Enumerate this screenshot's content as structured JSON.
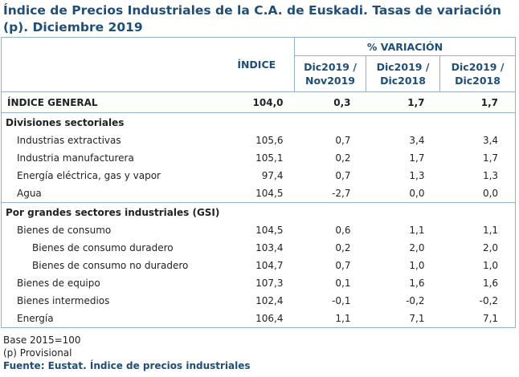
{
  "title": "Índice de Precios Industriales de la C.A. de Euskadi. Tasas de variación (p). Diciembre 2019",
  "headers": {
    "indice": "ÍNDICE",
    "variacion": "% VARIACIÓN",
    "col1": "Dic2019 / Nov2019",
    "col2": "Dic2019 / Dic2018",
    "col3": "Dic2019 / Dic2018"
  },
  "general": {
    "label": "ÍNDICE GENERAL",
    "indice": "104,0",
    "v1": "0,3",
    "v2": "1,7",
    "v3": "1,7"
  },
  "sections": [
    {
      "title": "Divisiones sectoriales",
      "rows": [
        {
          "label": "Industrias extractivas",
          "indice": "105,6",
          "v1": "0,7",
          "v2": "3,4",
          "v3": "3,4"
        },
        {
          "label": "Industria manufacturera",
          "indice": "105,1",
          "v1": "0,2",
          "v2": "1,7",
          "v3": "1,7"
        },
        {
          "label": "Energía eléctrica, gas y vapor",
          "indice": "97,4",
          "v1": "0,7",
          "v2": "1,3",
          "v3": "1,3"
        },
        {
          "label": "Agua",
          "indice": "104,5",
          "v1": "-2,7",
          "v2": "0,0",
          "v3": "0,0"
        }
      ]
    },
    {
      "title": "Por grandes sectores industriales (GSI)",
      "rows": [
        {
          "label": "Bienes de consumo",
          "indice": "104,5",
          "v1": "0,6",
          "v2": "1,1",
          "v3": "1,1"
        },
        {
          "label": "Bienes de consumo duradero",
          "indice": "103,4",
          "v1": "0,2",
          "v2": "2,0",
          "v3": "2,0"
        },
        {
          "label": "Bienes de consumo no duradero",
          "indice": "104,7",
          "v1": "0,7",
          "v2": "1,0",
          "v3": "1,0"
        },
        {
          "label": "Bienes de equipo",
          "indice": "107,3",
          "v1": "0,1",
          "v2": "1,6",
          "v3": "1,6"
        },
        {
          "label": "Bienes intermedios",
          "indice": "102,4",
          "v1": "-0,1",
          "v2": "-0,2",
          "v3": "-0,2"
        },
        {
          "label": "Energía",
          "indice": "106,4",
          "v1": "1,1",
          "v2": "7,1",
          "v3": "7,1"
        }
      ]
    }
  ],
  "notes": {
    "base": "Base 2015=100",
    "provisional": "(p) Provisional",
    "source": "Fuente: Eustat. Índice de precios industriales"
  }
}
